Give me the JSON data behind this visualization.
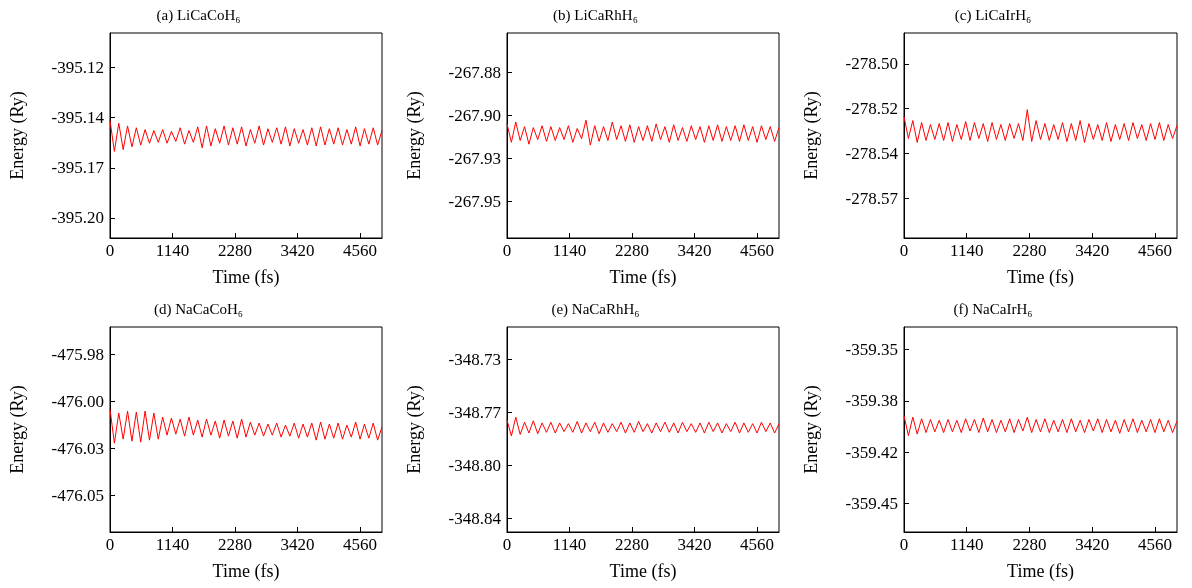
{
  "chart_data": [
    {
      "type": "line",
      "title": "(a) LiCaCoH₆",
      "xlabel": "Time (fs)",
      "ylabel": "Energy (Ry)",
      "x": [
        0,
        80,
        160,
        240,
        320,
        400,
        480,
        560,
        640,
        720,
        800,
        880,
        960,
        1040,
        1120,
        1200,
        1280,
        1360,
        1440,
        1520,
        1600,
        1680,
        1760,
        1840,
        1920,
        2000,
        2080,
        2160,
        2240,
        2320,
        2400,
        2480,
        2560,
        2640,
        2720,
        2800,
        2880,
        2960,
        3040,
        3120,
        3200,
        3280,
        3360,
        3440,
        3520,
        3600,
        3680,
        3760,
        3840,
        3920,
        4000,
        4080,
        4160,
        4240,
        4320,
        4400,
        4480,
        4560,
        4640,
        4720,
        4800,
        4880,
        4960
      ],
      "series": [
        {
          "color": "#ff0000",
          "values": [
            -395.144,
            -395.161,
            -395.1455,
            -395.16,
            -395.147,
            -395.1585,
            -395.148,
            -395.1575,
            -395.149,
            -395.1565,
            -395.1495,
            -395.156,
            -395.149,
            -395.1565,
            -395.15,
            -395.1555,
            -395.148,
            -395.157,
            -395.1495,
            -395.156,
            -395.1475,
            -395.159,
            -395.147,
            -395.158,
            -395.1485,
            -395.1565,
            -395.147,
            -395.1575,
            -395.148,
            -395.157,
            -395.1475,
            -395.158,
            -395.149,
            -395.1565,
            -395.147,
            -395.1575,
            -395.1485,
            -395.156,
            -395.148,
            -395.157,
            -395.1475,
            -395.158,
            -395.1485,
            -395.1565,
            -395.149,
            -395.1575,
            -395.148,
            -395.158,
            -395.1475,
            -395.1575,
            -395.1485,
            -395.157,
            -395.148,
            -395.1575,
            -395.149,
            -395.157,
            -395.1475,
            -395.158,
            -395.1485,
            -395.157,
            -395.148,
            -395.1575,
            -395.1495
          ]
        }
      ],
      "xlim": [
        0,
        4960
      ],
      "xticks": [
        0,
        1140,
        2280,
        3420,
        4560
      ],
      "ylim": [
        -395.2085,
        -395.096
      ],
      "yticks": [
        {
          "value": -395.115,
          "label": "-395.12"
        },
        {
          "value": -395.1425,
          "label": "-395.14"
        },
        {
          "value": -395.17,
          "label": "-395.17"
        },
        {
          "value": -395.1975,
          "label": "-395.20"
        }
      ],
      "grid": false
    },
    {
      "type": "line",
      "title": "(b) LiCaRhH₆",
      "xlabel": "Time (fs)",
      "ylabel": "Energy (Ry)",
      "x": [
        0,
        80,
        160,
        240,
        320,
        400,
        480,
        560,
        640,
        720,
        800,
        880,
        960,
        1040,
        1120,
        1200,
        1280,
        1360,
        1440,
        1520,
        1600,
        1680,
        1760,
        1840,
        1920,
        2000,
        2080,
        2160,
        2240,
        2320,
        2400,
        2480,
        2560,
        2640,
        2720,
        2800,
        2880,
        2960,
        3040,
        3120,
        3200,
        3280,
        3360,
        3440,
        3520,
        3600,
        3680,
        3760,
        3840,
        3920,
        4000,
        4080,
        4160,
        4240,
        4320,
        4400,
        4480,
        4560,
        4640,
        4720,
        4800,
        4880,
        4960
      ],
      "series": [
        {
          "color": "#ff0000",
          "values": [
            -267.908,
            -267.918,
            -267.907,
            -267.917,
            -267.9095,
            -267.919,
            -267.91,
            -267.9165,
            -267.909,
            -267.9175,
            -267.9095,
            -267.917,
            -267.91,
            -267.9165,
            -267.909,
            -267.918,
            -267.9105,
            -267.916,
            -267.906,
            -267.9195,
            -267.909,
            -267.9175,
            -267.9095,
            -267.917,
            -267.907,
            -267.9165,
            -267.909,
            -267.9175,
            -267.9085,
            -267.918,
            -267.9095,
            -267.917,
            -267.909,
            -267.9175,
            -267.908,
            -267.9165,
            -267.9095,
            -267.918,
            -267.9085,
            -267.917,
            -267.91,
            -267.9175,
            -267.909,
            -267.9165,
            -267.9095,
            -267.918,
            -267.909,
            -267.917,
            -267.9085,
            -267.9175,
            -267.9095,
            -267.917,
            -267.909,
            -267.9175,
            -267.9085,
            -267.917,
            -267.9095,
            -267.918,
            -267.909,
            -267.9165,
            -267.9095,
            -267.9175,
            -267.91
          ]
        }
      ],
      "xlim": [
        0,
        4960
      ],
      "xticks": [
        0,
        1140,
        2280,
        3420,
        4560
      ],
      "ylim": [
        -267.9698,
        -267.8588
      ],
      "yticks": [
        {
          "value": -267.88,
          "label": "-267.88"
        },
        {
          "value": -267.9033,
          "label": "-267.90"
        },
        {
          "value": -267.9267,
          "label": "-267.93"
        },
        {
          "value": -267.95,
          "label": "-267.95"
        }
      ],
      "grid": false
    },
    {
      "type": "line",
      "title": "(c) LiCaIrH₆",
      "xlabel": "Time (fs)",
      "ylabel": "Energy (Ry)",
      "x": [
        0,
        80,
        160,
        240,
        320,
        400,
        480,
        560,
        640,
        720,
        800,
        880,
        960,
        1040,
        1120,
        1200,
        1280,
        1360,
        1440,
        1520,
        1600,
        1680,
        1760,
        1840,
        1920,
        2000,
        2080,
        2160,
        2240,
        2320,
        2400,
        2480,
        2560,
        2640,
        2720,
        2800,
        2880,
        2960,
        3040,
        3120,
        3200,
        3280,
        3360,
        3440,
        3520,
        3600,
        3680,
        3760,
        3840,
        3920,
        4000,
        4080,
        4160,
        4240,
        4320,
        4400,
        4480,
        4560,
        4640,
        4720,
        4800,
        4880,
        4960
      ],
      "series": [
        {
          "color": "#ff0000",
          "values": [
            -278.526,
            -278.537,
            -278.528,
            -278.539,
            -278.529,
            -278.538,
            -278.53,
            -278.5375,
            -278.5295,
            -278.538,
            -278.529,
            -278.5385,
            -278.53,
            -278.5375,
            -278.5285,
            -278.538,
            -278.529,
            -278.537,
            -278.5295,
            -278.5385,
            -278.529,
            -278.5375,
            -278.53,
            -278.538,
            -278.5295,
            -278.537,
            -278.5295,
            -278.538,
            -278.5225,
            -278.5385,
            -278.528,
            -278.5375,
            -278.5295,
            -278.538,
            -278.53,
            -278.5375,
            -278.529,
            -278.5385,
            -278.5295,
            -278.538,
            -278.528,
            -278.539,
            -278.5295,
            -278.5375,
            -278.53,
            -278.538,
            -278.529,
            -278.5385,
            -278.53,
            -278.5375,
            -278.5295,
            -278.538,
            -278.529,
            -278.537,
            -278.53,
            -278.538,
            -278.5295,
            -278.5375,
            -278.529,
            -278.538,
            -278.53,
            -278.537,
            -278.5305
          ]
        }
      ],
      "xlim": [
        0,
        4960
      ],
      "xticks": [
        0,
        1140,
        2280,
        3420,
        4560
      ],
      "ylim": [
        -278.587,
        -278.484
      ],
      "yticks": [
        {
          "value": -278.4995,
          "label": "-278.50"
        },
        {
          "value": -278.522,
          "label": "-278.52"
        },
        {
          "value": -278.5445,
          "label": "-278.54"
        },
        {
          "value": -278.567,
          "label": "-278.57"
        }
      ],
      "grid": false
    },
    {
      "type": "line",
      "title": "(d) NaCaCoH₆",
      "xlabel": "Time (fs)",
      "ylabel": "Energy (Ry)",
      "x": [
        0,
        80,
        160,
        240,
        320,
        400,
        480,
        560,
        640,
        720,
        800,
        880,
        960,
        1040,
        1120,
        1200,
        1280,
        1360,
        1440,
        1520,
        1600,
        1680,
        1760,
        1840,
        1920,
        2000,
        2080,
        2160,
        2240,
        2320,
        2400,
        2480,
        2560,
        2640,
        2720,
        2800,
        2880,
        2960,
        3040,
        3120,
        3200,
        3280,
        3360,
        3440,
        3520,
        3600,
        3680,
        3760,
        3840,
        3920,
        4000,
        4080,
        4160,
        4240,
        4320,
        4400,
        4480,
        4560,
        4640,
        4720,
        4800,
        4880,
        4960
      ],
      "series": [
        {
          "color": "#ff0000",
          "values": [
            -476.007,
            -476.024,
            -476.009,
            -476.022,
            -476.008,
            -476.023,
            -476.0085,
            -476.0235,
            -476.008,
            -476.0225,
            -476.009,
            -476.022,
            -476.011,
            -476.02,
            -476.0115,
            -476.0195,
            -476.012,
            -476.0205,
            -476.011,
            -476.02,
            -476.0125,
            -476.021,
            -476.012,
            -476.02,
            -476.013,
            -476.0215,
            -476.0125,
            -476.0205,
            -476.013,
            -476.0215,
            -476.012,
            -476.021,
            -476.0135,
            -476.02,
            -476.014,
            -476.0205,
            -476.0145,
            -476.02,
            -476.014,
            -476.021,
            -476.015,
            -476.0205,
            -476.014,
            -476.0215,
            -476.0145,
            -476.021,
            -476.014,
            -476.0225,
            -476.0135,
            -476.022,
            -476.0145,
            -476.0215,
            -476.014,
            -476.022,
            -476.015,
            -476.021,
            -476.0135,
            -476.022,
            -476.0145,
            -476.0215,
            -476.014,
            -476.0225,
            -476.016
          ]
        }
      ],
      "xlim": [
        0,
        4960
      ],
      "xticks": [
        0,
        1140,
        2280,
        3420,
        4560
      ],
      "ylim": [
        -476.0682,
        -475.9662
      ],
      "yticks": [
        {
          "value": -475.98,
          "label": "-475.98"
        },
        {
          "value": -476.0033,
          "label": "-476.00"
        },
        {
          "value": -476.0267,
          "label": "-476.03"
        },
        {
          "value": -476.05,
          "label": "-476.05"
        }
      ],
      "grid": false
    },
    {
      "type": "line",
      "title": "(e) NaCaRhH₆",
      "xlabel": "Time (fs)",
      "ylabel": "Energy (Ry)",
      "x": [
        0,
        80,
        160,
        240,
        320,
        400,
        480,
        560,
        640,
        720,
        800,
        880,
        960,
        1040,
        1120,
        1200,
        1280,
        1360,
        1440,
        1520,
        1600,
        1680,
        1760,
        1840,
        1920,
        2000,
        2080,
        2160,
        2240,
        2320,
        2400,
        2480,
        2560,
        2640,
        2720,
        2800,
        2880,
        2960,
        3040,
        3120,
        3200,
        3280,
        3360,
        3440,
        3520,
        3600,
        3680,
        3760,
        3840,
        3920,
        4000,
        4080,
        4160,
        4240,
        4320,
        4400,
        4480,
        4560,
        4640,
        4720,
        4800,
        4880,
        4960
      ],
      "series": [
        {
          "color": "#ff0000",
          "values": [
            -348.772,
            -348.783,
            -348.77,
            -348.782,
            -348.7735,
            -348.781,
            -348.7725,
            -348.7815,
            -348.774,
            -348.7805,
            -348.7735,
            -348.781,
            -348.774,
            -348.78,
            -348.7745,
            -348.7805,
            -348.773,
            -348.781,
            -348.774,
            -348.78,
            -348.7735,
            -348.7815,
            -348.774,
            -348.7805,
            -348.7745,
            -348.78,
            -348.7735,
            -348.781,
            -348.774,
            -348.7805,
            -348.773,
            -348.78,
            -348.7745,
            -348.781,
            -348.774,
            -348.78,
            -348.7735,
            -348.7805,
            -348.774,
            -348.781,
            -348.7735,
            -348.78,
            -348.7745,
            -348.7805,
            -348.774,
            -348.781,
            -348.7735,
            -348.78,
            -348.774,
            -348.781,
            -348.7745,
            -348.78,
            -348.7735,
            -348.781,
            -348.774,
            -348.7805,
            -348.7745,
            -348.781,
            -348.7735,
            -348.78,
            -348.774,
            -348.781,
            -348.7745
          ]
        }
      ],
      "xlim": [
        0,
        4960
      ],
      "xticks": [
        0,
        1140,
        2280,
        3420,
        4560
      ],
      "ylim": [
        -348.8495,
        -348.7076
      ],
      "yticks": [
        {
          "value": -348.73,
          "label": "-348.73"
        },
        {
          "value": -348.7667,
          "label": "-348.77"
        },
        {
          "value": -348.8033,
          "label": "-348.80"
        },
        {
          "value": -348.84,
          "label": "-348.84"
        }
      ],
      "grid": false
    },
    {
      "type": "line",
      "title": "(f) NaCaIrH₆",
      "xlabel": "Time (fs)",
      "ylabel": "Energy (Ry)",
      "x": [
        0,
        80,
        160,
        240,
        320,
        400,
        480,
        560,
        640,
        720,
        800,
        880,
        960,
        1040,
        1120,
        1200,
        1280,
        1360,
        1440,
        1520,
        1600,
        1680,
        1760,
        1840,
        1920,
        2000,
        2080,
        2160,
        2240,
        2320,
        2400,
        2480,
        2560,
        2640,
        2720,
        2800,
        2880,
        2960,
        3040,
        3120,
        3200,
        3280,
        3360,
        3440,
        3520,
        3600,
        3680,
        3760,
        3840,
        3920,
        4000,
        4080,
        4160,
        4240,
        4320,
        4400,
        4480,
        4560,
        4640,
        4720,
        4800,
        4880,
        4960
      ],
      "series": [
        {
          "color": "#ff0000",
          "values": [
            -359.393,
            -359.406,
            -359.394,
            -359.405,
            -359.395,
            -359.404,
            -359.3955,
            -359.4035,
            -359.396,
            -359.404,
            -359.3955,
            -359.4035,
            -359.396,
            -359.404,
            -359.395,
            -359.403,
            -359.3955,
            -359.404,
            -359.3945,
            -359.4035,
            -359.3955,
            -359.404,
            -359.396,
            -359.4035,
            -359.395,
            -359.404,
            -359.3955,
            -359.403,
            -359.394,
            -359.404,
            -359.3955,
            -359.4035,
            -359.395,
            -359.404,
            -359.396,
            -359.4035,
            -359.3955,
            -359.404,
            -359.395,
            -359.4035,
            -359.396,
            -359.404,
            -359.3955,
            -359.403,
            -359.395,
            -359.404,
            -359.3955,
            -359.4035,
            -359.396,
            -359.4045,
            -359.3955,
            -359.4035,
            -359.395,
            -359.404,
            -359.396,
            -359.4035,
            -359.3955,
            -359.404,
            -359.395,
            -359.4035,
            -359.396,
            -359.404,
            -359.3965
          ]
        }
      ],
      "xlim": [
        0,
        4960
      ],
      "xticks": [
        0,
        1140,
        2280,
        3420,
        4560
      ],
      "ylim": [
        -359.4687,
        -359.3353
      ],
      "yticks": [
        {
          "value": -359.35,
          "label": "-359.35"
        },
        {
          "value": -359.3833,
          "label": "-359.38"
        },
        {
          "value": -359.4167,
          "label": "-359.42"
        },
        {
          "value": -359.45,
          "label": "-359.45"
        }
      ],
      "grid": false
    }
  ]
}
